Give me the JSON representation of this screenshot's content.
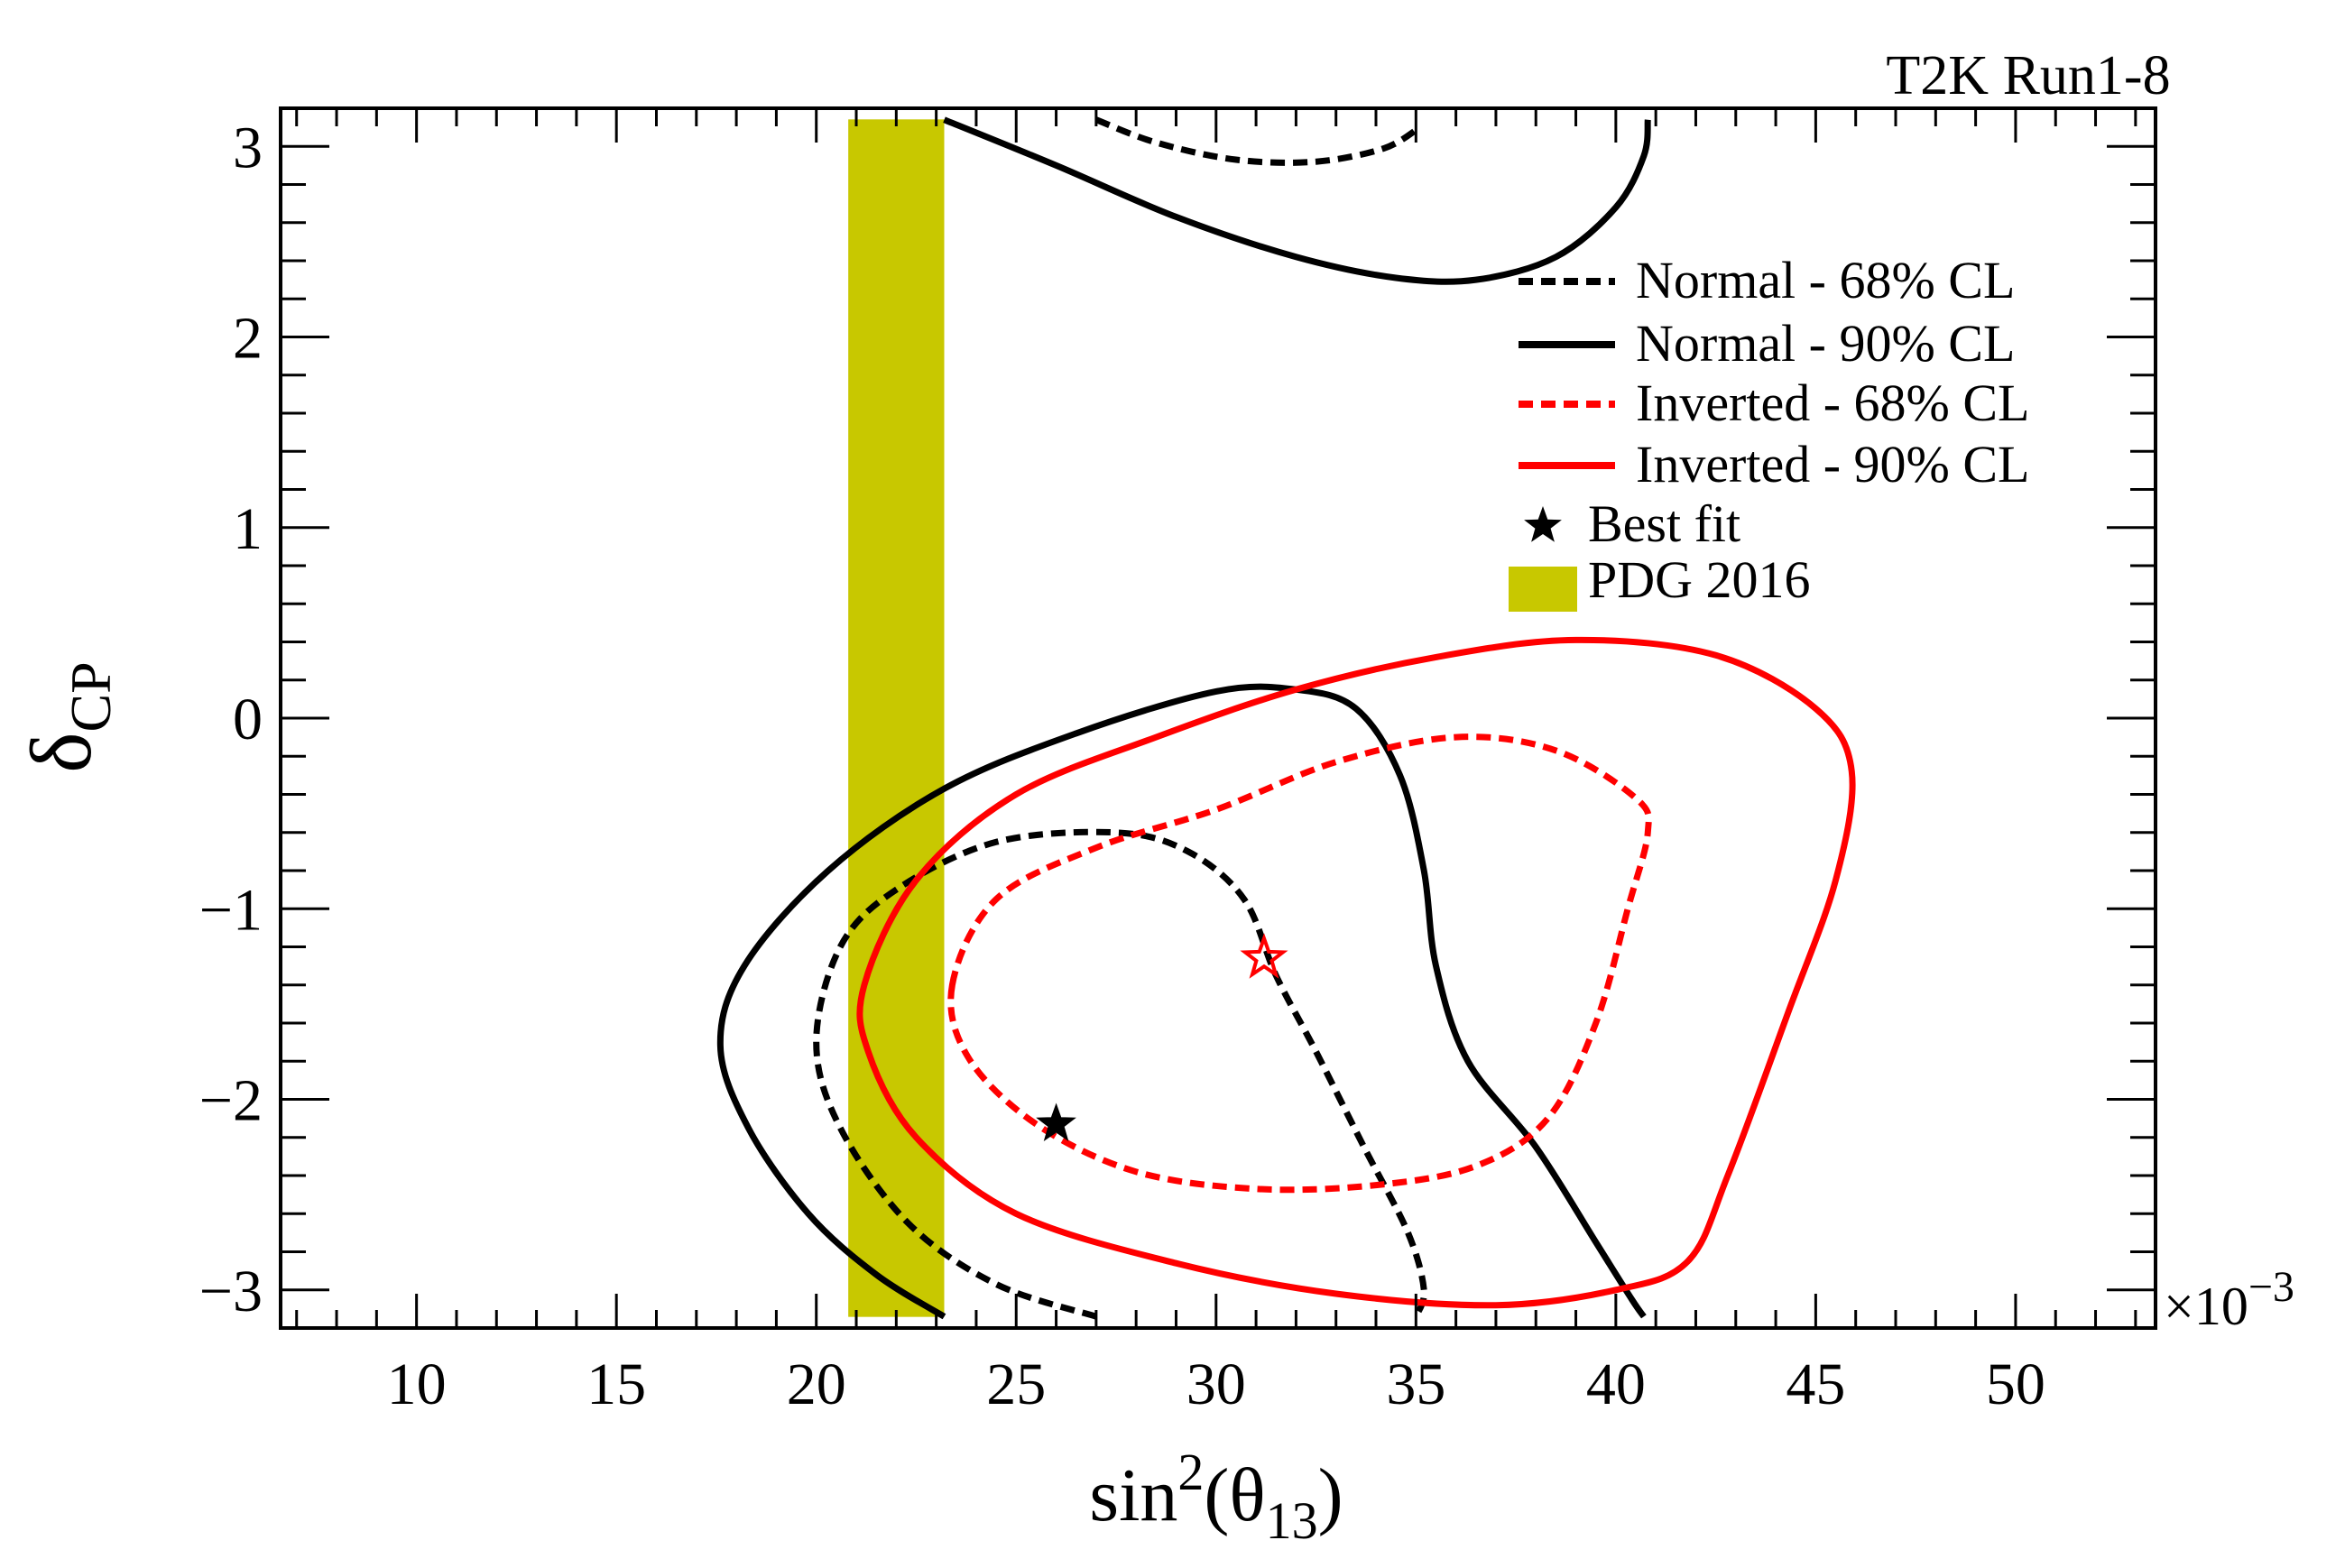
{
  "chart_data": {
    "type": "contour",
    "title": "T2K Run1-8",
    "xlabel": "sin",
    "xlabel_sup": "2",
    "xlabel_open": "(θ",
    "xlabel_sub": "13",
    "xlabel_close": ")",
    "ylabel": "δ",
    "ylabel_sub": "CP",
    "x_multiplier": "×10",
    "x_multiplier_exp": "−3",
    "xlim": [
      6.6,
      53.5
    ],
    "ylim": [
      -3.2,
      3.2
    ],
    "x_major_ticks": [
      10,
      15,
      20,
      25,
      30,
      35,
      40,
      45,
      50
    ],
    "x_tick_labels": [
      "10",
      "15",
      "20",
      "25",
      "30",
      "35",
      "40",
      "45",
      "50"
    ],
    "y_major_ticks": [
      -3,
      -2,
      -1,
      0,
      1,
      2,
      3
    ],
    "y_tick_labels": [
      "−3",
      "−2",
      "−1",
      "0",
      "1",
      "2",
      "3"
    ],
    "pdg_band": {
      "label": "PDG 2016",
      "x_range": [
        20.8,
        23.2
      ],
      "y_range": [
        -3.14159,
        3.14159
      ],
      "color": "#c8c800"
    },
    "legend": [
      {
        "label": "Normal - 68% CL",
        "style": "dashed",
        "color": "#000000"
      },
      {
        "label": "Normal - 90% CL",
        "style": "solid",
        "color": "#000000"
      },
      {
        "label": "Inverted - 68% CL",
        "style": "dashed",
        "color": "#ff0000"
      },
      {
        "label": "Inverted - 90% CL",
        "style": "solid",
        "color": "#ff0000"
      },
      {
        "label": "Best fit",
        "style": "star",
        "color": "#000000"
      },
      {
        "label": "PDG 2016",
        "style": "box",
        "color": "#c8c800"
      }
    ],
    "best_fit": [
      {
        "name": "normal",
        "x": 26.0,
        "y": -2.13,
        "filled": true,
        "color": "#000000"
      },
      {
        "name": "inverted",
        "x": 31.2,
        "y": -1.26,
        "filled": false,
        "color": "#ff0000"
      }
    ],
    "series": [
      {
        "name": "Normal 90% CL (upper)",
        "style": "solid",
        "color": "#000000",
        "points": [
          [
            23.2,
            3.14
          ],
          [
            26,
            2.9
          ],
          [
            29,
            2.63
          ],
          [
            32,
            2.42
          ],
          [
            34.5,
            2.31
          ],
          [
            36.5,
            2.3
          ],
          [
            38.5,
            2.42
          ],
          [
            40,
            2.68
          ],
          [
            40.7,
            2.95
          ],
          [
            40.8,
            3.14
          ]
        ]
      },
      {
        "name": "Normal 68% CL (upper)",
        "style": "dashed",
        "color": "#000000",
        "points": [
          [
            27,
            3.14
          ],
          [
            28.5,
            3.02
          ],
          [
            30.5,
            2.93
          ],
          [
            32.5,
            2.92
          ],
          [
            34.2,
            2.99
          ],
          [
            35.1,
            3.1
          ]
        ]
      },
      {
        "name": "Normal 90% CL (lower)",
        "style": "solid",
        "color": "#000000",
        "points": [
          [
            23.2,
            -3.14
          ],
          [
            21.5,
            -2.92
          ],
          [
            19.8,
            -2.6
          ],
          [
            18.3,
            -2.15
          ],
          [
            17.6,
            -1.72
          ],
          [
            18.2,
            -1.3
          ],
          [
            20.3,
            -0.8
          ],
          [
            23.2,
            -0.37
          ],
          [
            26.5,
            -0.08
          ],
          [
            30,
            0.14
          ],
          [
            32,
            0.15
          ],
          [
            33.5,
            0.05
          ],
          [
            34.6,
            -0.3
          ],
          [
            35.2,
            -0.8
          ],
          [
            35.5,
            -1.3
          ],
          [
            36.3,
            -1.8
          ],
          [
            38,
            -2.25
          ],
          [
            39.5,
            -2.75
          ],
          [
            40.4,
            -3.05
          ],
          [
            40.7,
            -3.14
          ]
        ]
      },
      {
        "name": "Normal 68% CL (lower)",
        "style": "dashed",
        "color": "#000000",
        "points": [
          [
            27,
            -3.14
          ],
          [
            24.5,
            -2.97
          ],
          [
            22.3,
            -2.65
          ],
          [
            20.6,
            -2.15
          ],
          [
            20,
            -1.7
          ],
          [
            20.6,
            -1.2
          ],
          [
            22,
            -0.9
          ],
          [
            24.5,
            -0.65
          ],
          [
            27.5,
            -0.6
          ],
          [
            29.3,
            -0.7
          ],
          [
            30.7,
            -0.95
          ],
          [
            31.5,
            -1.35
          ],
          [
            32.5,
            -1.75
          ],
          [
            33.7,
            -2.25
          ],
          [
            34.8,
            -2.7
          ],
          [
            35.2,
            -3.0
          ],
          [
            35,
            -3.14
          ]
        ]
      },
      {
        "name": "Inverted 90% CL",
        "style": "solid",
        "color": "#ff0000",
        "closed": true,
        "points": [
          [
            21.2,
            -1.4
          ],
          [
            22.5,
            -0.85
          ],
          [
            25,
            -0.4
          ],
          [
            28.5,
            -0.1
          ],
          [
            32,
            0.15
          ],
          [
            35.5,
            0.32
          ],
          [
            39,
            0.41
          ],
          [
            42.5,
            0.33
          ],
          [
            45,
            0.05
          ],
          [
            45.9,
            -0.28
          ],
          [
            45.5,
            -0.85
          ],
          [
            44.3,
            -1.55
          ],
          [
            42.8,
            -2.4
          ],
          [
            41.8,
            -2.85
          ],
          [
            40,
            -3.0
          ],
          [
            37,
            -3.08
          ],
          [
            33,
            -3.02
          ],
          [
            29,
            -2.86
          ],
          [
            25,
            -2.6
          ],
          [
            22.5,
            -2.2
          ],
          [
            21.3,
            -1.75
          ]
        ]
      },
      {
        "name": "Inverted 68% CL",
        "style": "dashed",
        "color": "#ff0000",
        "closed": true,
        "points": [
          [
            23.4,
            -1.4
          ],
          [
            24.5,
            -0.95
          ],
          [
            27,
            -0.68
          ],
          [
            30,
            -0.48
          ],
          [
            33,
            -0.23
          ],
          [
            36,
            -0.1
          ],
          [
            38.5,
            -0.17
          ],
          [
            40.5,
            -0.42
          ],
          [
            40.8,
            -0.6
          ],
          [
            40.3,
            -1.0
          ],
          [
            39.5,
            -1.6
          ],
          [
            38.3,
            -2.1
          ],
          [
            36.5,
            -2.35
          ],
          [
            34,
            -2.45
          ],
          [
            31,
            -2.47
          ],
          [
            28,
            -2.38
          ],
          [
            25.5,
            -2.13
          ],
          [
            23.8,
            -1.78
          ]
        ]
      }
    ]
  }
}
